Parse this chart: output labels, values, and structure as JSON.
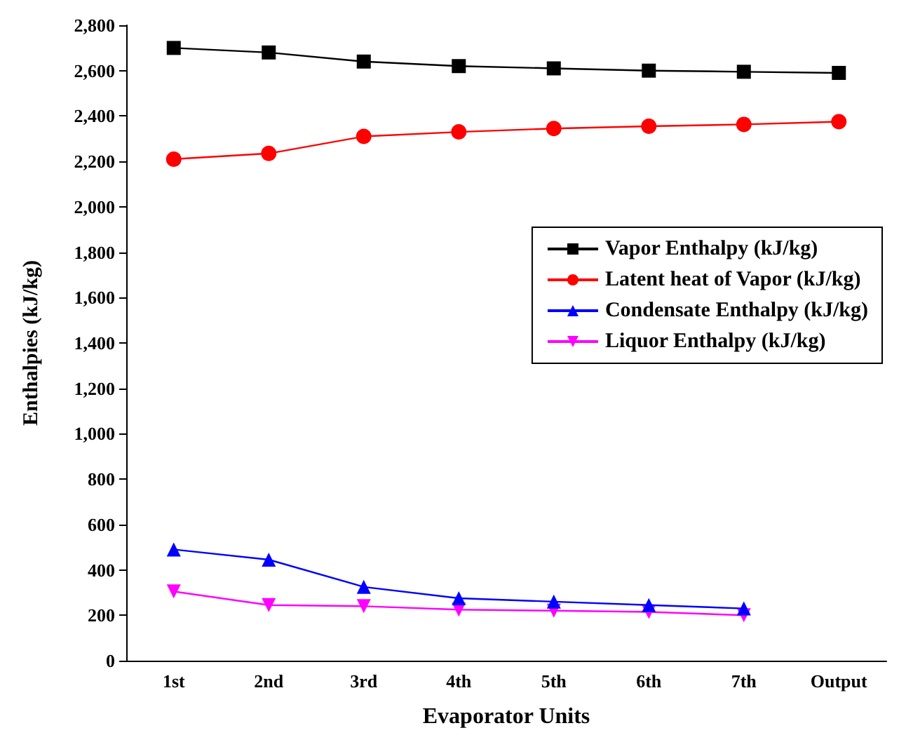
{
  "chart_data": {
    "type": "line",
    "xlabel": "Evaporator Units",
    "ylabel": "Enthalpies (kJ/kg)",
    "categories": [
      "1st",
      "2nd",
      "3rd",
      "4th",
      "5th",
      "6th",
      "7th",
      "Output"
    ],
    "ylim": [
      0,
      2800
    ],
    "yticks": [
      0,
      200,
      400,
      600,
      800,
      {
        "value": 1000,
        "label": "1,000"
      },
      {
        "value": 1200,
        "label": "1,200"
      },
      {
        "value": 1400,
        "label": "1,400"
      },
      {
        "value": 1600,
        "label": "1,600"
      },
      {
        "value": 1800,
        "label": "1,800"
      },
      {
        "value": 2000,
        "label": "2,000"
      },
      {
        "value": 2200,
        "label": "2,200"
      },
      {
        "value": 2400,
        "label": "2,400"
      },
      {
        "value": 2600,
        "label": "2,600"
      },
      {
        "value": 2800,
        "label": "2,800"
      }
    ],
    "grid": false,
    "legend": "right",
    "line_style": "solid",
    "series": [
      {
        "name": "Vapor Enthalpy (kJ/kg)",
        "color": "#000000",
        "marker": "square",
        "values": [
          2700,
          2680,
          2640,
          2620,
          2610,
          2600,
          2595,
          2590
        ]
      },
      {
        "name": "Latent heat of Vapor (kJ/kg)",
        "color": "#ff0000",
        "marker": "circle",
        "values": [
          2210,
          2235,
          2310,
          2330,
          2345,
          2355,
          2363,
          2375
        ]
      },
      {
        "name": "Condensate Enthalpy (kJ/kg)",
        "color": "#0000ff",
        "marker": "triangle",
        "values": [
          490,
          445,
          325,
          275,
          260,
          245,
          230,
          null
        ]
      },
      {
        "name": "Liquor Enthalpy (kJ/kg)",
        "color": "#ff00ff",
        "marker": "triangle-down",
        "values": [
          305,
          245,
          240,
          225,
          220,
          215,
          200,
          null
        ]
      }
    ]
  }
}
